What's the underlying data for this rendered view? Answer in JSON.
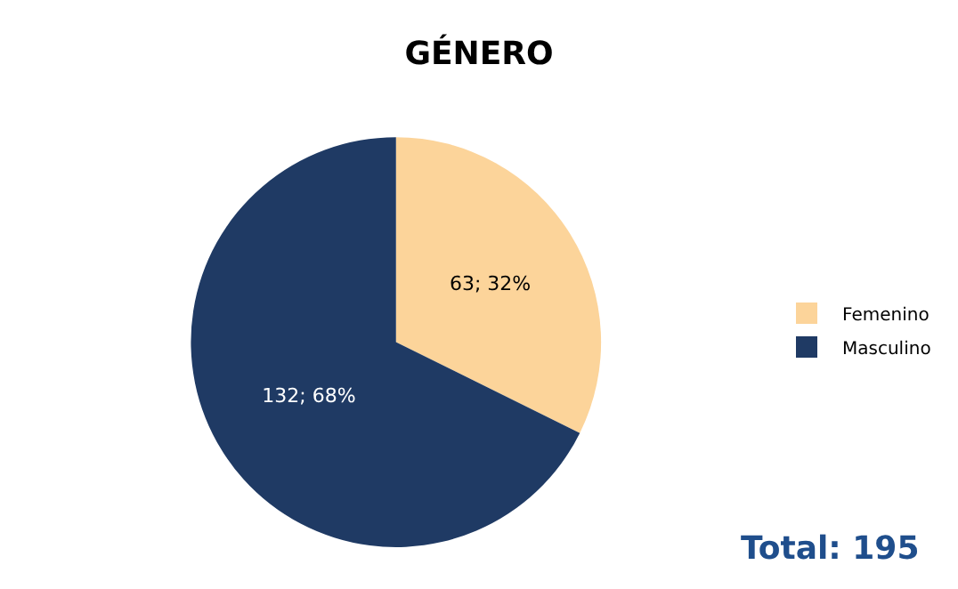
{
  "chart_data": {
    "type": "pie",
    "title": "GÉNERO",
    "categories": [
      "Femenino",
      "Masculino"
    ],
    "values": [
      63,
      132
    ],
    "colors": [
      "#fcd49a",
      "#1f3a64"
    ],
    "value_labels": [
      "63; 32%",
      "132; 68%"
    ],
    "legend": "right",
    "annotations": [
      "Total: 195"
    ]
  }
}
